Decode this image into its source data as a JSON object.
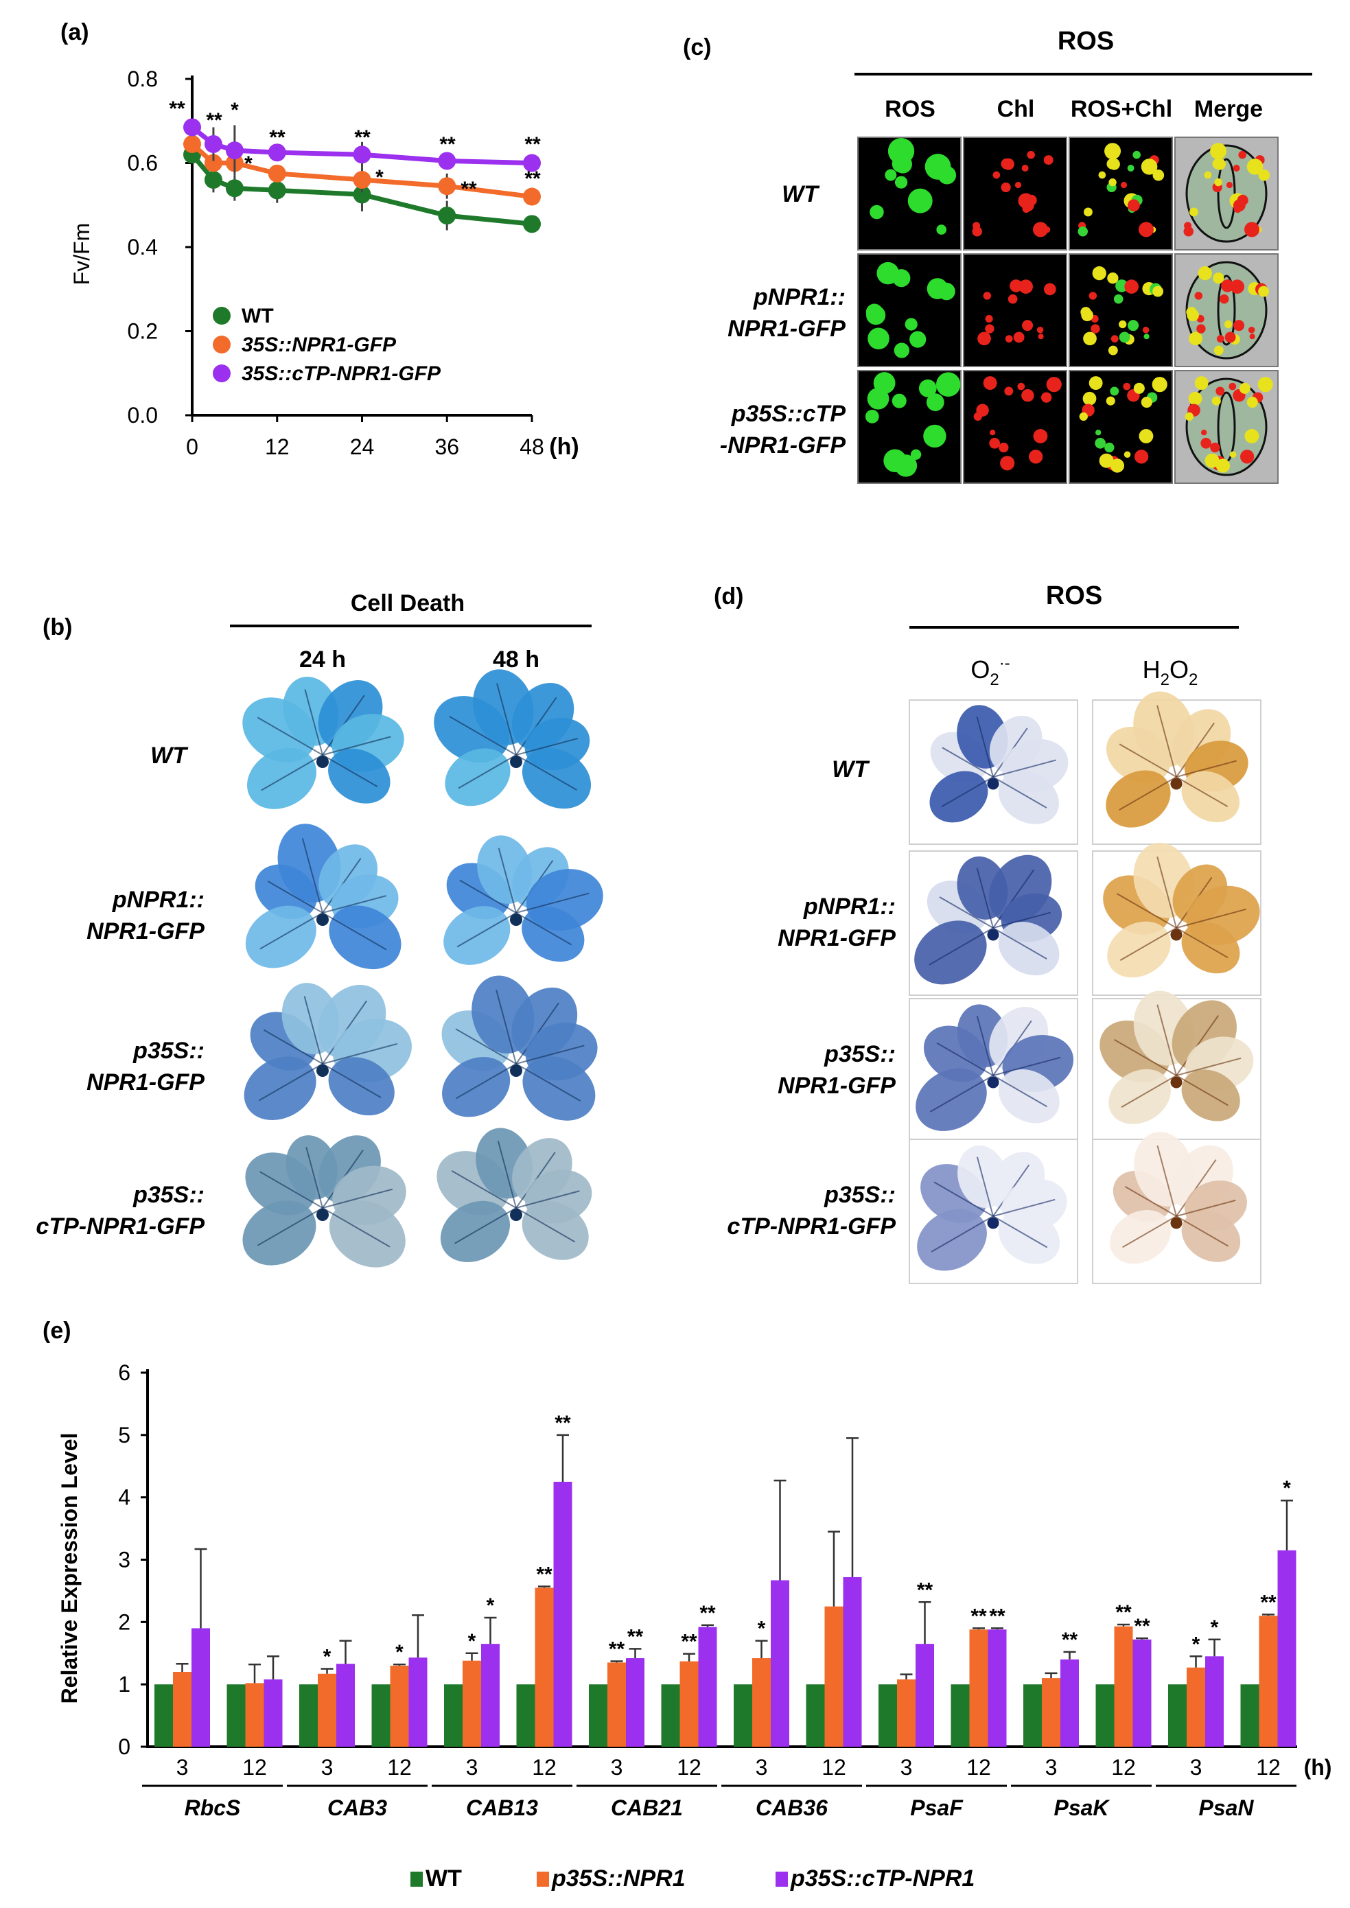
{
  "panels": {
    "a": {
      "label": "(a)",
      "chart_data": {
        "type": "line",
        "ylabel": "Fv/Fm",
        "x_unit": "(h)",
        "x": [
          0,
          3,
          6,
          12,
          24,
          36,
          48
        ],
        "x_ticks": [
          0,
          12,
          24,
          36,
          48
        ],
        "ylim": [
          0.0,
          0.8
        ],
        "y_ticks": [
          "0.0",
          "0.2",
          "0.4",
          "0.6",
          "0.8"
        ],
        "series": [
          {
            "name": "WT",
            "color": "#1e7a2a",
            "values": [
              0.62,
              0.56,
              0.54,
              0.535,
              0.525,
              0.475,
              0.455
            ],
            "err": [
              0.02,
              0.03,
              0.03,
              0.03,
              0.04,
              0.035,
              0.015
            ]
          },
          {
            "name": "35S::NPR1-GFP",
            "color": "#f26b2a",
            "values": [
              0.645,
              0.6,
              0.6,
              0.575,
              0.56,
              0.545,
              0.52
            ],
            "err": [
              0.02,
              0.02,
              0.02,
              0.02,
              0.03,
              0.03,
              0.01
            ]
          },
          {
            "name": "35S::cTP-NPR1-GFP",
            "color": "#9b30ef",
            "values": [
              0.685,
              0.645,
              0.63,
              0.625,
              0.62,
              0.605,
              0.6
            ],
            "err": [
              0.02,
              0.04,
              0.06,
              0.02,
              0.03,
              0.015,
              0.01
            ]
          }
        ],
        "annotations": [
          "**",
          "**",
          "*",
          "*",
          "**",
          "**",
          "*",
          "**",
          "**",
          "**",
          "**"
        ]
      }
    },
    "b": {
      "label": "(b)",
      "title": "Cell Death",
      "columns": [
        "24 h",
        "48 h"
      ],
      "rows": [
        {
          "l1": "WT",
          "l2": ""
        },
        {
          "l1": "pNPR1::",
          "l2": "NPR1-GFP"
        },
        {
          "l1": "p35S::",
          "l2": "NPR1-GFP"
        },
        {
          "l1": "p35S::",
          "l2": "cTP-NPR1-GFP"
        }
      ]
    },
    "c": {
      "label": "(c)",
      "title": "ROS",
      "columns": [
        "ROS",
        "Chl",
        "ROS+Chl",
        "Merge"
      ],
      "rows": [
        {
          "l1": "WT",
          "l2": ""
        },
        {
          "l1": "pNPR1::",
          "l2": "NPR1-GFP"
        },
        {
          "l1": "p35S::cTP",
          "l2": "-NPR1-GFP"
        }
      ]
    },
    "d": {
      "label": "(d)",
      "title": "ROS",
      "columns": [
        "O2·-",
        "H2O2"
      ],
      "rows": [
        {
          "l1": "WT",
          "l2": ""
        },
        {
          "l1": "pNPR1::",
          "l2": "NPR1-GFP"
        },
        {
          "l1": "p35S::",
          "l2": "NPR1-GFP"
        },
        {
          "l1": "p35S::",
          "l2": "cTP-NPR1-GFP"
        }
      ]
    },
    "e": {
      "label": "(e)",
      "chart_data": {
        "type": "bar",
        "ylabel": "Relative Expression Level",
        "ylim": [
          0,
          6
        ],
        "y_ticks": [
          "0",
          "1",
          "2",
          "3",
          "4",
          "5",
          "6"
        ],
        "x_unit": "(h)",
        "genes": [
          "RbcS",
          "CAB3",
          "CAB13",
          "CAB21",
          "CAB36",
          "PsaF",
          "PsaK",
          "PsaN"
        ],
        "timepoints": [
          "3",
          "12"
        ],
        "series": [
          {
            "name": "WT",
            "color": "#1e7a2a",
            "values": [
              1,
              1,
              1,
              1,
              1,
              1,
              1,
              1,
              1,
              1,
              1,
              1,
              1,
              1,
              1,
              1
            ],
            "err": [
              0,
              0,
              0,
              0,
              0,
              0,
              0,
              0,
              0,
              0,
              0,
              0,
              0,
              0,
              0,
              0
            ],
            "stars": [
              "",
              "",
              "",
              "",
              "",
              "",
              "",
              "",
              "",
              "",
              "",
              "",
              "",
              "",
              "",
              ""
            ]
          },
          {
            "name": "p35S::NPR1",
            "color": "#f26b2a",
            "values": [
              1.2,
              1.02,
              1.17,
              1.3,
              1.38,
              2.55,
              1.35,
              1.37,
              1.42,
              2.25,
              1.08,
              1.88,
              1.1,
              1.93,
              1.27,
              2.1
            ],
            "err": [
              0.13,
              0.3,
              0.08,
              0.02,
              0.12,
              0.02,
              0.02,
              0.12,
              0.28,
              1.2,
              0.08,
              0.02,
              0.08,
              0.03,
              0.18,
              0.02
            ],
            "stars": [
              "",
              "",
              "*",
              "*",
              "*",
              "**",
              "**",
              "**",
              "*",
              "",
              "",
              "**",
              "",
              "**",
              "*",
              "**"
            ]
          },
          {
            "name": "p35S::cTP-NPR1",
            "color": "#9b30ef",
            "values": [
              1.9,
              1.08,
              1.33,
              1.43,
              1.65,
              4.25,
              1.42,
              1.92,
              2.67,
              2.72,
              1.65,
              1.88,
              1.4,
              1.72,
              1.45,
              3.15
            ],
            "err": [
              1.27,
              0.37,
              0.37,
              0.68,
              0.42,
              0.75,
              0.15,
              0.03,
              1.6,
              2.23,
              0.67,
              0.02,
              0.12,
              0.02,
              0.27,
              0.8
            ],
            "stars": [
              "",
              "",
              "",
              "",
              "*",
              "**",
              "**",
              "**",
              "",
              "",
              "**",
              "**",
              "**",
              "**",
              "*",
              "*"
            ]
          }
        ]
      }
    }
  }
}
